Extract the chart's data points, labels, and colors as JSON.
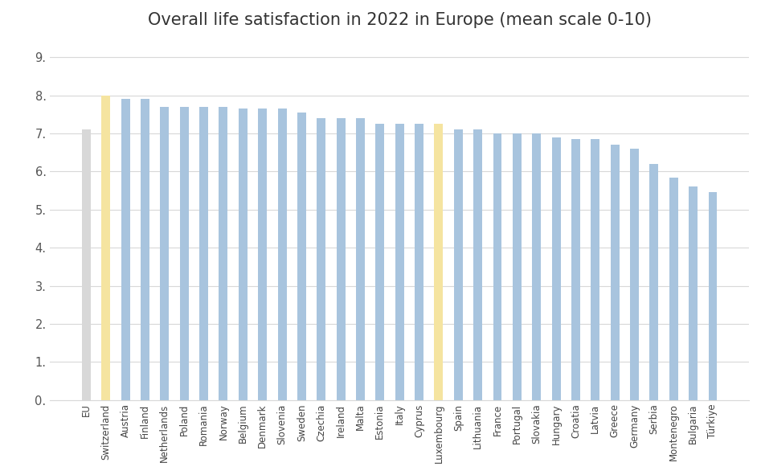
{
  "title": "Overall life satisfaction in 2022 in Europe (mean scale 0-10)",
  "categories": [
    "EU",
    "Switzerland",
    "Austria",
    "Finland",
    "Netherlands",
    "Poland",
    "Romania",
    "Norway",
    "Belgium",
    "Denmark",
    "Slovenia",
    "Sweden",
    "Czechia",
    "Ireland",
    "Malta",
    "Estonia",
    "Italy",
    "Cyprus",
    "Luxembourg",
    "Spain",
    "Lithuania",
    "France",
    "Portugal",
    "Slovakia",
    "Hungary",
    "Croatia",
    "Latvia",
    "Greece",
    "Germany",
    "Serbia",
    "Montenegro",
    "Bulgaria",
    "Türkiye"
  ],
  "values": [
    7.1,
    8.0,
    7.9,
    7.9,
    7.7,
    7.7,
    7.7,
    7.7,
    7.65,
    7.65,
    7.65,
    7.55,
    7.4,
    7.4,
    7.4,
    7.25,
    7.25,
    7.25,
    7.25,
    7.1,
    7.1,
    7.0,
    7.0,
    7.0,
    6.9,
    6.85,
    6.85,
    6.7,
    6.6,
    6.2,
    5.85,
    5.6,
    5.45
  ],
  "highlight_indices": [
    1,
    18
  ],
  "highlight_color": "#F5E4A0",
  "default_color": "#A8C4DE",
  "eu_color": "#D8D8D8",
  "ylim": [
    0,
    9.5
  ],
  "yticks": [
    0,
    1.0,
    2.0,
    3.0,
    4.0,
    5.0,
    6.0,
    7.0,
    8.0,
    9.0
  ],
  "ytick_labels": [
    "0.",
    "1.",
    "2.",
    "3.",
    "4.",
    "5.",
    "6.",
    "7.",
    "8.",
    "9."
  ],
  "background_color": "#FFFFFF",
  "grid_color": "#D8D8D8",
  "title_fontsize": 15,
  "bar_width": 0.45
}
